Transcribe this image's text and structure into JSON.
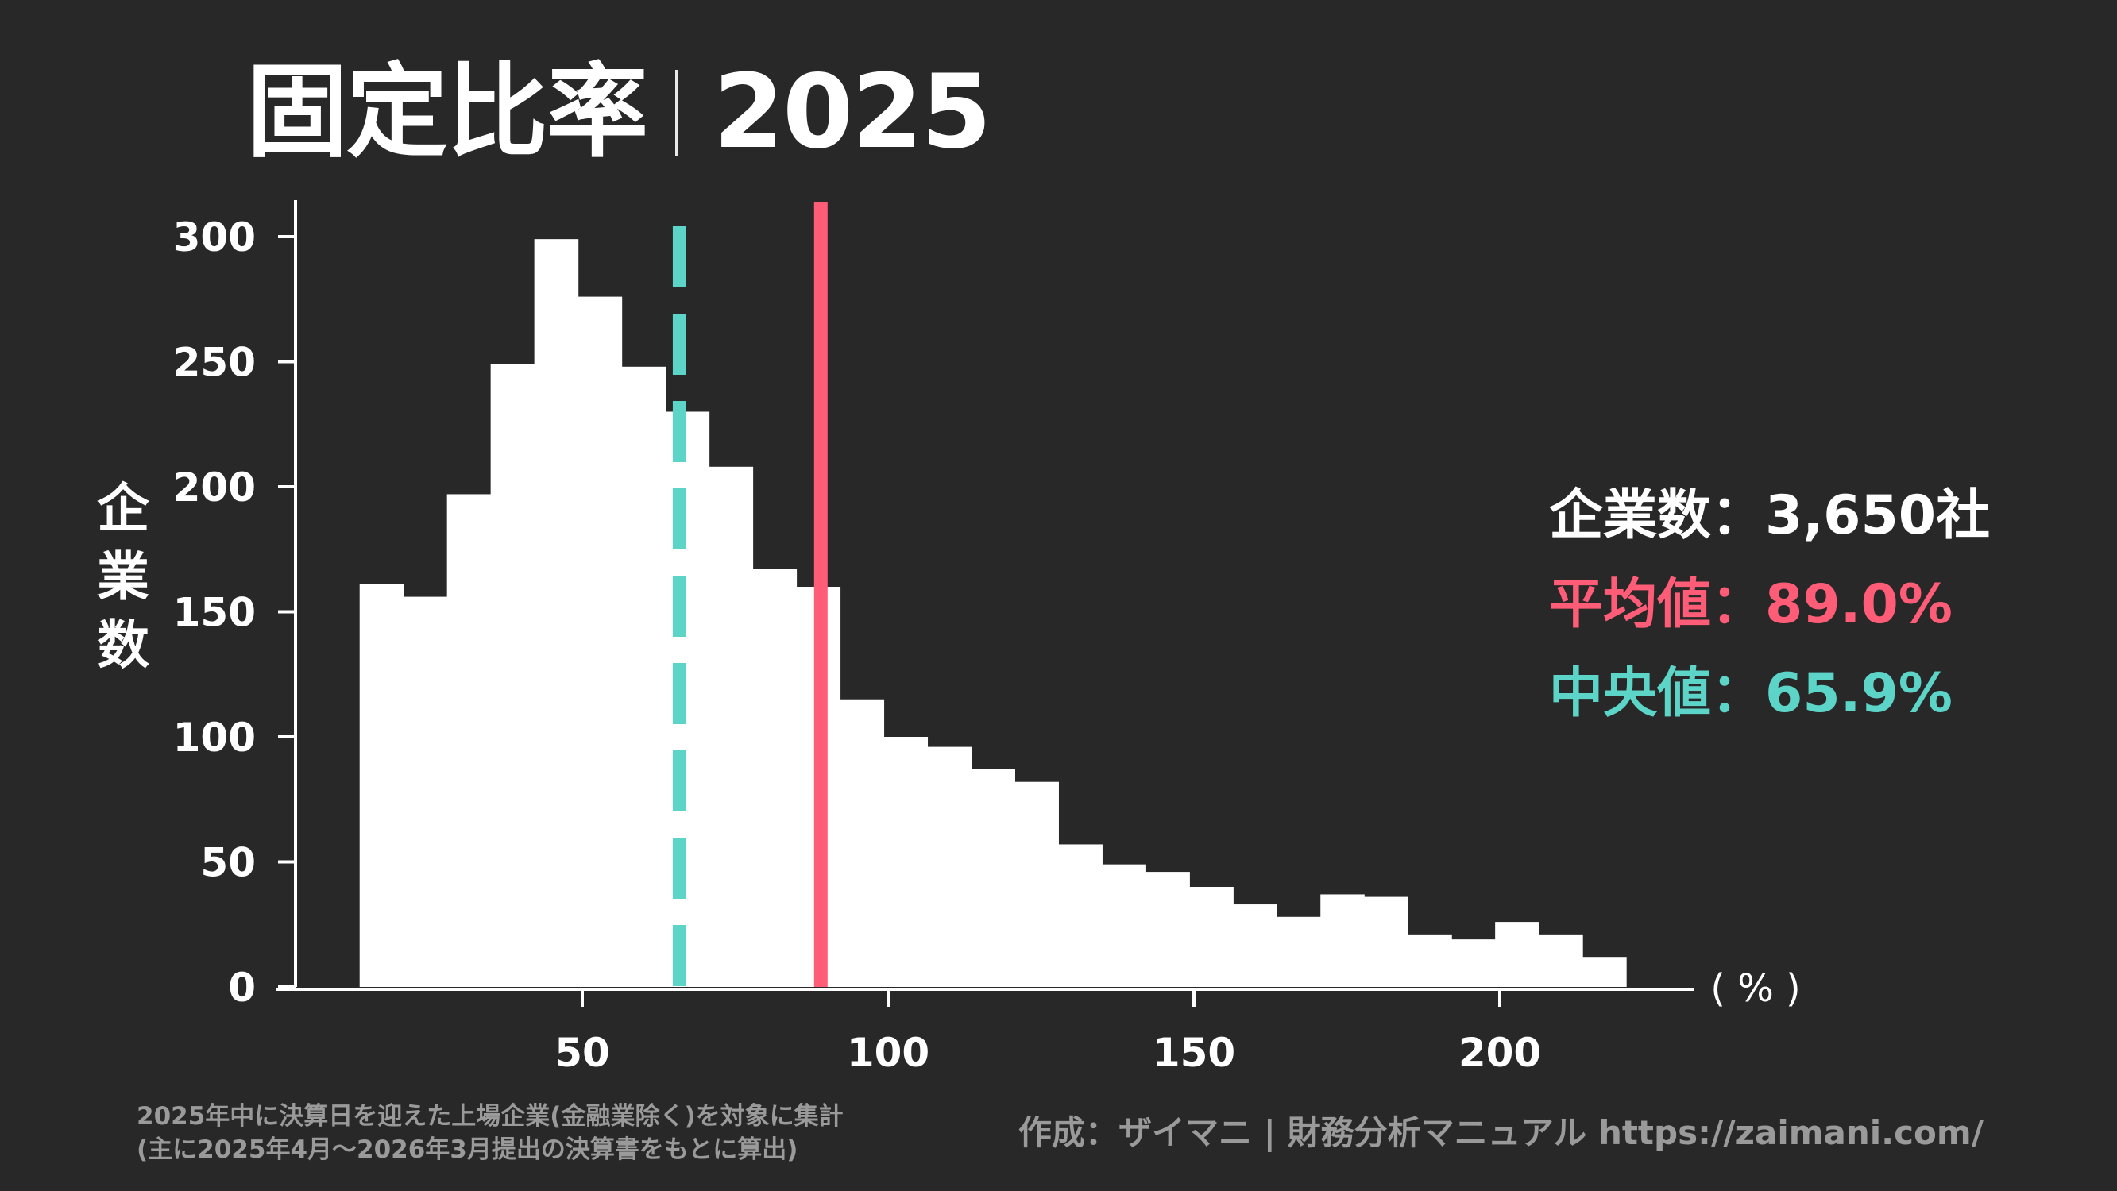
{
  "title": {
    "metric": "固定比率",
    "year": "2025"
  },
  "stats": {
    "count_label": "企業数：",
    "count_value": "3,650社",
    "mean_label": "平均値：",
    "mean_value": "89.0%",
    "median_label": "中央値：",
    "median_value": "65.9%"
  },
  "colors": {
    "background": "#282828",
    "bars": "#ffffff",
    "mean": "#ff5c77",
    "median": "#5dd4c8",
    "footnote": "#9a9a9a"
  },
  "footer": {
    "note_line1": "2025年中に決算日を迎えた上場企業(金融業除く)を対象に集計",
    "note_line2": "(主に2025年4月～2026年3月提出の決算書をもとに算出)",
    "credit": "作成：ザイマニ | 財務分析マニュアル https://zaimani.com/"
  },
  "chart_data": {
    "type": "bar",
    "subtype": "histogram",
    "title": "固定比率｜2025",
    "xlabel": "(%)",
    "ylabel": "企業数",
    "xlim": [
      0,
      230
    ],
    "ylim": [
      0,
      315
    ],
    "x_ticks": [
      50,
      100,
      150,
      200
    ],
    "y_ticks": [
      0,
      50,
      100,
      150,
      200,
      250,
      300
    ],
    "grid": false,
    "bin_start": 13.6,
    "bin_width": 7.14,
    "bin_edges": [
      13.6,
      20.7,
      27.9,
      35.0,
      42.2,
      49.3,
      56.4,
      63.6,
      70.7,
      77.9,
      85.0,
      92.1,
      99.3,
      106.4,
      113.6,
      120.7,
      127.8,
      135.0,
      142.1,
      149.3,
      156.4,
      163.5,
      170.7,
      177.8,
      185.0,
      192.1,
      199.2,
      206.4,
      213.5,
      220.7
    ],
    "values": [
      161,
      156,
      197,
      249,
      299,
      276,
      248,
      230,
      208,
      167,
      160,
      115,
      100,
      96,
      87,
      82,
      57,
      49,
      46,
      40,
      33,
      28,
      37,
      36,
      21,
      19,
      26,
      21,
      12
    ],
    "reference_lines": [
      {
        "name": "平均値",
        "value": 89.0,
        "style": "solid",
        "color": "#ff5c77"
      },
      {
        "name": "中央値",
        "value": 65.9,
        "style": "dashed",
        "color": "#5dd4c8"
      }
    ],
    "annotations": [
      "企業数：3,650社",
      "平均値：89.0%",
      "中央値：65.9%"
    ]
  }
}
